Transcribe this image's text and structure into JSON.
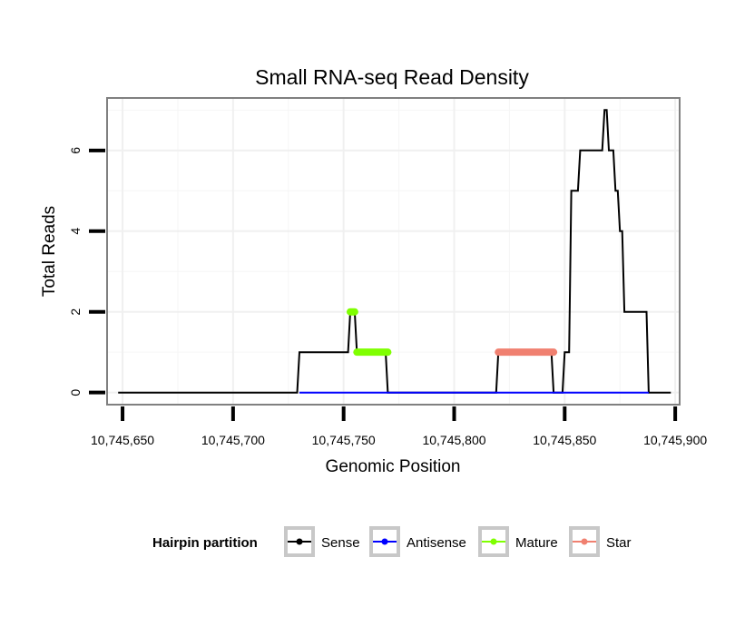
{
  "chart_data": {
    "type": "line",
    "title": "Small RNA-seq Read Density",
    "xlabel": "Genomic Position",
    "ylabel": "Total Reads",
    "xlim": [
      10745643,
      10745902
    ],
    "ylim": [
      -0.3,
      7.3
    ],
    "x_ticks": [
      10745650,
      10745700,
      10745750,
      10745800,
      10745850,
      10745900
    ],
    "x_tick_labels": [
      "10,745,650",
      "10,745,700",
      "10,745,750",
      "10,745,800",
      "10,745,850",
      "10,745,900"
    ],
    "y_ticks": [
      0,
      2,
      4,
      6
    ],
    "y_tick_labels": [
      "0",
      "2",
      "4",
      "6"
    ],
    "grid": true,
    "legend": {
      "title": "Hairpin partition",
      "position": "bottom",
      "entries": [
        {
          "name": "Sense",
          "color": "#000000"
        },
        {
          "name": "Antisense",
          "color": "#0000ff"
        },
        {
          "name": "Mature",
          "color": "#7fff00"
        },
        {
          "name": "Star",
          "color": "#f08070"
        }
      ]
    },
    "series": [
      {
        "name": "Sense",
        "color": "#000000",
        "x": [
          10745648,
          10745729,
          10745730,
          10745752,
          10745753,
          10745755,
          10745756,
          10745769,
          10745770,
          10745819,
          10745820,
          10745844,
          10745845,
          10745849,
          10745850,
          10745852,
          10745853,
          10745856,
          10745857,
          10745862,
          10745863,
          10745867,
          10745868,
          10745869,
          10745870,
          10745872,
          10745873,
          10745874,
          10745875,
          10745876,
          10745877,
          10745881,
          10745882,
          10745887,
          10745888,
          10745898
        ],
        "values": [
          0,
          0,
          1,
          1,
          2,
          2,
          1,
          1,
          0,
          0,
          1,
          1,
          0,
          0,
          1,
          1,
          5,
          5,
          6,
          6,
          6,
          6,
          7,
          7,
          6,
          6,
          5,
          5,
          4,
          4,
          2,
          2,
          2,
          2,
          0,
          0
        ]
      },
      {
        "name": "Antisense",
        "color": "#0000ff",
        "x": [
          10745730,
          10745888
        ],
        "values": [
          0,
          0
        ]
      },
      {
        "name": "Mature",
        "color": "#7fff00",
        "segments": [
          {
            "x": [
              10745753,
              10745755
            ],
            "values": [
              2,
              2
            ]
          },
          {
            "x": [
              10745756,
              10745770
            ],
            "values": [
              1,
              1
            ]
          }
        ]
      },
      {
        "name": "Star",
        "color": "#f08070",
        "segments": [
          {
            "x": [
              10745820,
              10745845
            ],
            "values": [
              1,
              1
            ]
          }
        ]
      }
    ]
  }
}
